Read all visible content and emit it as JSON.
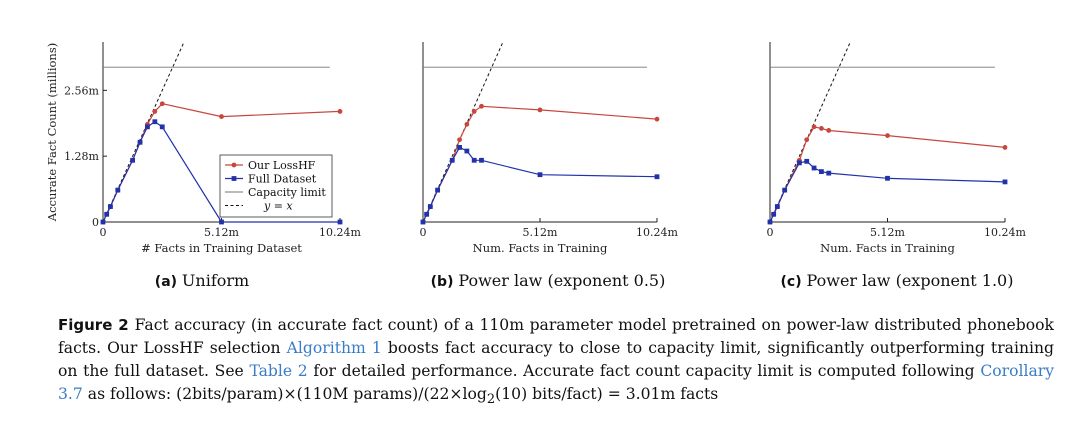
{
  "chart_data": [
    {
      "type": "line",
      "id": "a",
      "sublabel_prefix": "(a)",
      "sublabel_text": "Uniform",
      "xlabel": "# Facts in Training Dataset",
      "ylabel": "Accurate Fact Count (millions)",
      "xlim": [
        0,
        10.24
      ],
      "ylim": [
        0,
        3.5
      ],
      "x_ticks": [
        {
          "v": 0,
          "label": "0"
        },
        {
          "v": 5.12,
          "label": "5.12m"
        },
        {
          "v": 10.24,
          "label": "10.24m"
        }
      ],
      "y_ticks": [
        {
          "v": 0,
          "label": "0"
        },
        {
          "v": 1.28,
          "label": "1.28m"
        },
        {
          "v": 2.56,
          "label": "2.56m"
        }
      ],
      "capacity_limit": 3.01,
      "capacity_xrange": [
        0,
        9.8
      ],
      "series": [
        {
          "name": "Our LossHF",
          "color": "#c8463c",
          "marker": "circle",
          "x": [
            0,
            0.16,
            0.32,
            0.64,
            1.28,
            1.6,
            1.92,
            2.24,
            2.56,
            5.12,
            10.24
          ],
          "y": [
            0,
            0.15,
            0.3,
            0.62,
            1.2,
            1.55,
            1.9,
            2.15,
            2.3,
            2.05,
            2.15
          ]
        },
        {
          "name": "Full Dataset",
          "color": "#2233aa",
          "marker": "square",
          "x": [
            0,
            0.16,
            0.32,
            0.64,
            1.28,
            1.6,
            1.92,
            2.24,
            2.56,
            5.12,
            10.24
          ],
          "y": [
            0,
            0.15,
            0.3,
            0.62,
            1.2,
            1.55,
            1.85,
            1.95,
            1.85,
            0,
            0
          ]
        }
      ],
      "show_legend": true,
      "legend": [
        "Our LossHF",
        "Full Dataset",
        "Capacity limit",
        "y = x"
      ]
    },
    {
      "type": "line",
      "id": "b",
      "sublabel_prefix": "(b)",
      "sublabel_text": "Power law (exponent 0.5)",
      "xlabel": "Num. Facts in Training",
      "ylabel": "",
      "xlim": [
        0,
        10.24
      ],
      "ylim": [
        0,
        3.5
      ],
      "x_ticks": [
        {
          "v": 0,
          "label": "0"
        },
        {
          "v": 5.12,
          "label": "5.12m"
        },
        {
          "v": 10.24,
          "label": "10.24m"
        }
      ],
      "y_ticks": [],
      "capacity_limit": 3.01,
      "capacity_xrange": [
        0,
        9.8
      ],
      "series": [
        {
          "name": "Our LossHF",
          "color": "#c8463c",
          "marker": "circle",
          "x": [
            0,
            0.16,
            0.32,
            0.64,
            1.28,
            1.6,
            1.92,
            2.24,
            2.56,
            5.12,
            10.24
          ],
          "y": [
            0,
            0.15,
            0.3,
            0.62,
            1.2,
            1.6,
            1.9,
            2.15,
            2.25,
            2.18,
            2.0
          ]
        },
        {
          "name": "Full Dataset",
          "color": "#2233aa",
          "marker": "square",
          "x": [
            0,
            0.16,
            0.32,
            0.64,
            1.28,
            1.6,
            1.92,
            2.24,
            2.56,
            5.12,
            10.24
          ],
          "y": [
            0,
            0.15,
            0.3,
            0.62,
            1.2,
            1.45,
            1.38,
            1.2,
            1.2,
            0.92,
            0.88
          ]
        }
      ],
      "show_legend": false
    },
    {
      "type": "line",
      "id": "c",
      "sublabel_prefix": "(c)",
      "sublabel_text": "Power law (exponent 1.0)",
      "xlabel": "Num. Facts in Training",
      "ylabel": "",
      "xlim": [
        0,
        10.24
      ],
      "ylim": [
        0,
        3.5
      ],
      "x_ticks": [
        {
          "v": 0,
          "label": "0"
        },
        {
          "v": 5.12,
          "label": "5.12m"
        },
        {
          "v": 10.24,
          "label": "10.24m"
        }
      ],
      "y_ticks": [],
      "capacity_limit": 3.01,
      "capacity_xrange": [
        0,
        9.8
      ],
      "series": [
        {
          "name": "Our LossHF",
          "color": "#c8463c",
          "marker": "circle",
          "x": [
            0,
            0.16,
            0.32,
            0.64,
            1.28,
            1.6,
            1.92,
            2.24,
            2.56,
            5.12,
            10.24
          ],
          "y": [
            0,
            0.15,
            0.3,
            0.62,
            1.2,
            1.6,
            1.85,
            1.82,
            1.78,
            1.68,
            1.45
          ]
        },
        {
          "name": "Full Dataset",
          "color": "#2233aa",
          "marker": "square",
          "x": [
            0,
            0.16,
            0.32,
            0.64,
            1.28,
            1.6,
            1.92,
            2.24,
            2.56,
            5.12,
            10.24
          ],
          "y": [
            0,
            0.15,
            0.3,
            0.62,
            1.15,
            1.18,
            1.05,
            0.98,
            0.95,
            0.85,
            0.78
          ]
        }
      ],
      "show_legend": false
    }
  ],
  "caption": {
    "label": "Figure 2",
    "part1": "Fact accuracy (in accurate fact count) of a 110m parameter model pretrained on power-law distributed phonebook facts. Our LossHF selection ",
    "link1": "Algorithm 1",
    "part2": " boosts fact accuracy to close to capacity limit, significantly outperforming training on the full dataset. See ",
    "link2": "Table 2",
    "part3": " for detailed performance. Accurate fact count capacity limit is computed following ",
    "link3": "Corollary 3.7",
    "part4": " as follows: (2bits/param)×(110M params)/(22×log",
    "sub": "2",
    "part5": "(10) bits/fact) = 3.01m facts"
  }
}
